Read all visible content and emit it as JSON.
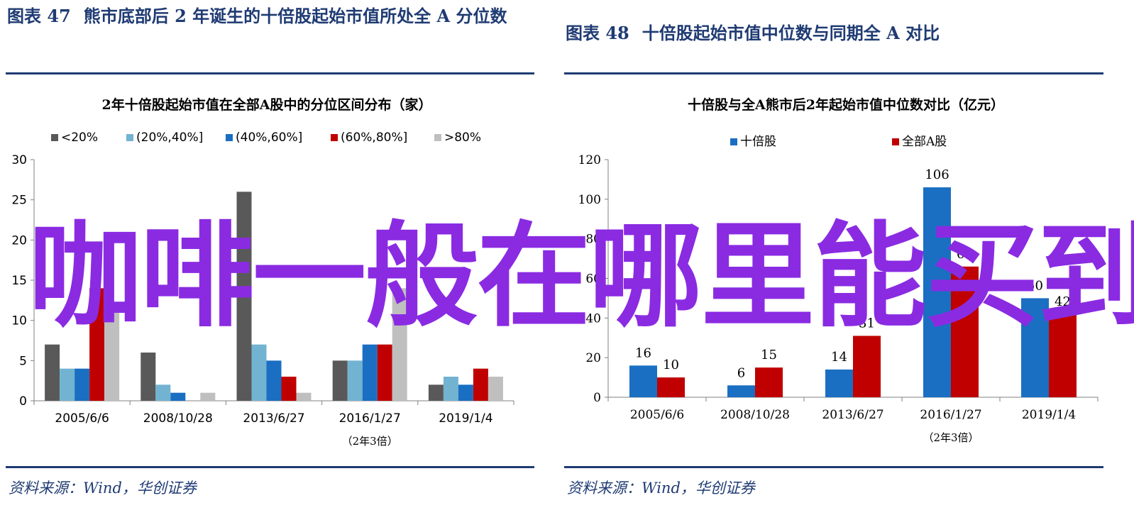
{
  "figure_left": {
    "label": "图表 47",
    "heading": "熊市底部后 2 年诞生的十倍股起始市值所处全 A 分位数",
    "source": "资料来源：Wind，华创证券"
  },
  "figure_right": {
    "label": "图表 48",
    "heading": "十倍股起始市值中位数与同期全 A 对比",
    "source": "资料来源：Wind，华创证券"
  },
  "overlay_text": "咖啡一般在哪里能买到",
  "chart_data": [
    {
      "type": "bar",
      "title": "2年十倍股起始市值在全部A股中的分位区间分布（家）",
      "categories": [
        "2005/6/6",
        "2008/10/28",
        "2013/6/27",
        "2016/1/27",
        "2019/1/4"
      ],
      "category_note": "（2年3倍）",
      "category_note_under": "2016/1/27",
      "series": [
        {
          "name": "<20%",
          "color": "#595959",
          "values": [
            7,
            6,
            26,
            5,
            2
          ]
        },
        {
          "name": "(20%,40%]",
          "color": "#72b3d2",
          "values": [
            4,
            2,
            7,
            5,
            3
          ]
        },
        {
          "name": "(40%,60%]",
          "color": "#1a6fc2",
          "values": [
            4,
            1,
            5,
            7,
            2
          ]
        },
        {
          "name": "(60%,80%]",
          "color": "#c00000",
          "values": [
            14,
            0,
            3,
            7,
            4
          ]
        },
        {
          "name": ">80%",
          "color": "#bfbfbf",
          "values": [
            11,
            1,
            1,
            14,
            3
          ]
        }
      ],
      "ylim": [
        0,
        30
      ],
      "yticks": [
        0,
        5,
        10,
        15,
        20,
        25,
        30
      ],
      "legend": "top"
    },
    {
      "type": "bar",
      "title": "十倍股与全A熊市后2年起始市值中位数对比（亿元）",
      "categories": [
        "2005/6/6",
        "2008/10/28",
        "2013/6/27",
        "2016/1/27",
        "2019/1/4"
      ],
      "category_note": "（2年3倍）",
      "category_note_under": "2016/1/27",
      "series": [
        {
          "name": "十倍股",
          "color": "#1a6fc2",
          "values": [
            16,
            6,
            14,
            106,
            50
          ]
        },
        {
          "name": "全部A股",
          "color": "#c00000",
          "values": [
            10,
            15,
            31,
            66,
            42
          ]
        }
      ],
      "ylim": [
        0,
        120
      ],
      "yticks": [
        0,
        20,
        40,
        60,
        80,
        100,
        120
      ],
      "data_labels": true,
      "legend": "top"
    }
  ]
}
